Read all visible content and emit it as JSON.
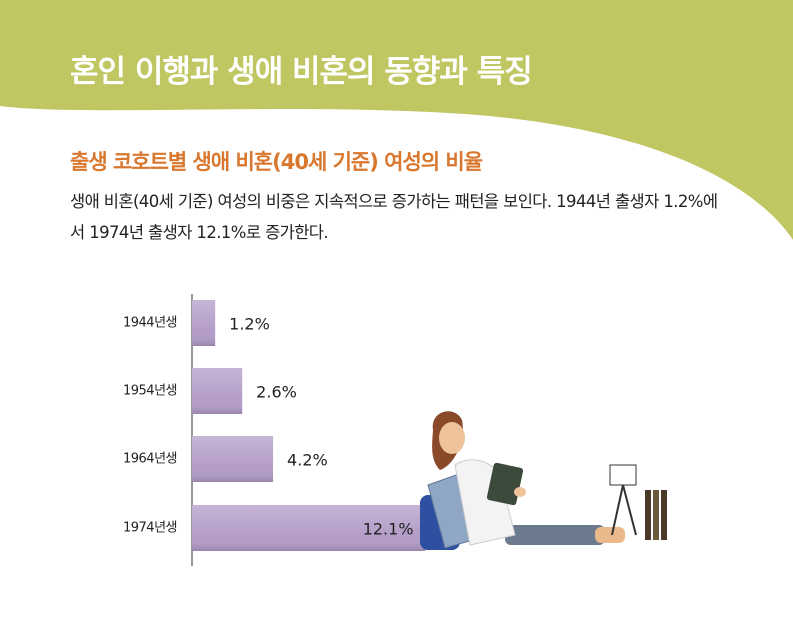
{
  "header": {
    "title": "혼인 이행과 생애 비혼의 동향과 특징"
  },
  "chart_data": {
    "type": "bar",
    "orientation": "horizontal",
    "title": "출생 코호트별 생애 비혼(40세 기준) 여성의 비율",
    "description": "생애 비혼(40세 기준) 여성의 비중은 지속적으로 증가하는 패턴을 보인다. 1944년 출생자 1.2%에서 1974년 출생자 12.1%로 증가한다.",
    "categories": [
      "1944년생",
      "1954년생",
      "1964년생",
      "1974년생"
    ],
    "values": [
      1.2,
      2.6,
      4.2,
      12.1
    ],
    "value_labels": [
      "1.2%",
      "2.6%",
      "4.2%",
      "12.1%"
    ],
    "color": "#b39cc8"
  }
}
